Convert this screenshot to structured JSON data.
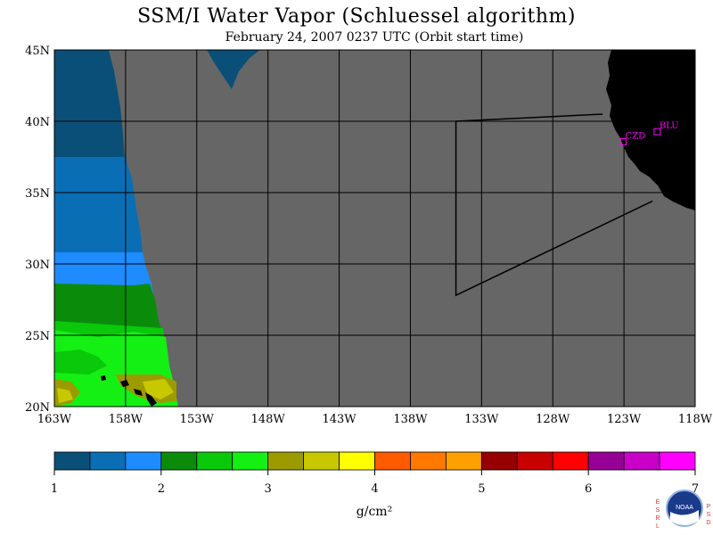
{
  "title": "SSM/I Water Vapor (Schluessel algorithm)",
  "subtitle": "February 24, 2007  0237 UTC  (Orbit start time)",
  "map": {
    "lon_range": [
      -163,
      -118
    ],
    "lat_range": [
      20,
      45
    ],
    "lat_ticks": [
      {
        "value": 45,
        "label": "45N"
      },
      {
        "value": 40,
        "label": "40N"
      },
      {
        "value": 35,
        "label": "35N"
      },
      {
        "value": 30,
        "label": "30N"
      },
      {
        "value": 25,
        "label": "25N"
      },
      {
        "value": 20,
        "label": "20N"
      }
    ],
    "lon_ticks": [
      {
        "value": -163,
        "label": "163W"
      },
      {
        "value": -158,
        "label": "158W"
      },
      {
        "value": -153,
        "label": "153W"
      },
      {
        "value": -148,
        "label": "148W"
      },
      {
        "value": -143,
        "label": "143W"
      },
      {
        "value": -138,
        "label": "138W"
      },
      {
        "value": -133,
        "label": "133W"
      },
      {
        "value": -128,
        "label": "128W"
      },
      {
        "value": -123,
        "label": "123W"
      },
      {
        "value": -118,
        "label": "118W"
      }
    ],
    "ocean_color": "#666666",
    "land_color": "#000000",
    "stations": [
      {
        "name": "CZD",
        "lon": -123.1,
        "lat": 38.6
      },
      {
        "name": "BLU",
        "lon": -120.7,
        "lat": 39.3
      }
    ],
    "station_color": "#ff00ff",
    "swath_outline": [
      [
        -134.8,
        40.0
      ],
      [
        -124.5,
        40.5
      ],
      [
        -134.8,
        40.0
      ],
      [
        -134.8,
        27.8
      ],
      [
        -121.0,
        34.4
      ]
    ]
  },
  "colorbar": {
    "units": "g/cm²",
    "min": 1,
    "max": 7,
    "tick_labels": [
      "1",
      "2",
      "3",
      "4",
      "5",
      "6",
      "7"
    ],
    "colors": [
      "#0a4f78",
      "#0a6eb4",
      "#1e8cff",
      "#0a8c0a",
      "#0ac80a",
      "#14f014",
      "#9b9b00",
      "#c8c800",
      "#ffff00",
      "#ff5a00",
      "#ff7800",
      "#ffa000",
      "#960000",
      "#c80000",
      "#ff0000",
      "#960096",
      "#c800c8",
      "#ff00ff"
    ]
  },
  "logo": {
    "left_letters": "ESRL",
    "right_letters": "PSD",
    "center": "NOAA"
  }
}
